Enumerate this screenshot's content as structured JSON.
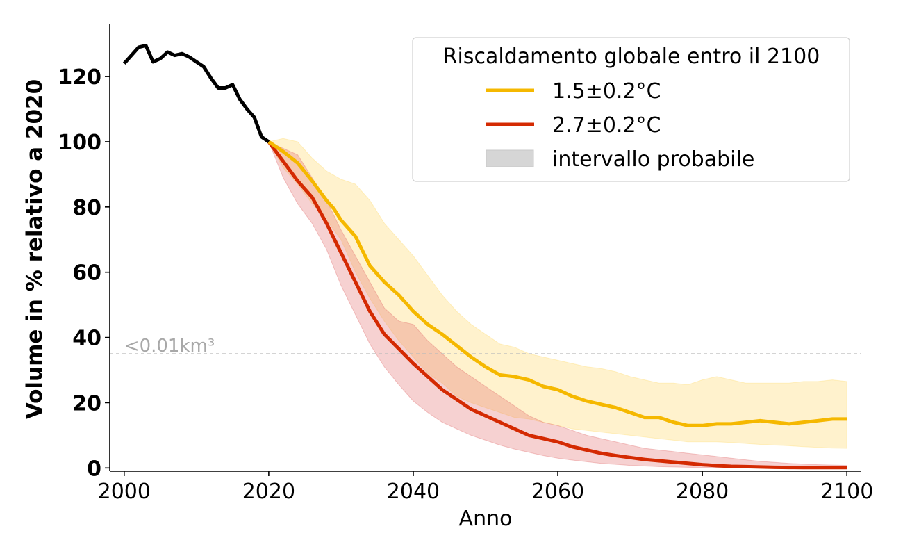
{
  "chart_data": {
    "type": "line",
    "xlabel": "Anno",
    "ylabel": "Volume in % relativo a 2020",
    "xlim": [
      1998,
      2102
    ],
    "ylim": [
      -1,
      136
    ],
    "x_ticks": [
      2000,
      2020,
      2040,
      2060,
      2080,
      2100
    ],
    "y_ticks": [
      0,
      20,
      40,
      60,
      80,
      100,
      120
    ],
    "grid": false,
    "reference_line": {
      "y": 35,
      "label": "<0.01km³",
      "style": "dashed",
      "color": "#bbbbbb"
    },
    "legend": {
      "title": "Riscaldamento globale entro il 2100",
      "placement": "top-right",
      "entries": [
        {
          "label": "1.5±0.2°C",
          "kind": "line",
          "color": "#f5b800"
        },
        {
          "label": "2.7±0.2°C",
          "kind": "line",
          "color": "#d42a02"
        },
        {
          "label": "intervallo probabile",
          "kind": "patch",
          "color": "#d6d6d6"
        }
      ]
    },
    "series": [
      {
        "id": "observed",
        "color": "#000000",
        "x": [
          2000,
          2001,
          2002,
          2003,
          2004,
          2005,
          2006,
          2007,
          2008,
          2009,
          2010,
          2011,
          2012,
          2013,
          2014,
          2015,
          2016,
          2017,
          2018,
          2019,
          2020
        ],
        "values": [
          124,
          126.5,
          129,
          129.5,
          124.5,
          125.5,
          127.5,
          126.5,
          127,
          126,
          124.5,
          123,
          119.5,
          116.5,
          116.5,
          117.5,
          113,
          110,
          107.5,
          101.5,
          100
        ]
      },
      {
        "id": "scenario-1.5",
        "name": "1.5±0.2°C",
        "color": "#f5b800",
        "x": [
          2020,
          2022,
          2024,
          2026,
          2028,
          2029,
          2030,
          2032,
          2034,
          2036,
          2038,
          2040,
          2042,
          2044,
          2046,
          2048,
          2050,
          2052,
          2054,
          2056,
          2058,
          2060,
          2062,
          2064,
          2066,
          2068,
          2070,
          2072,
          2074,
          2076,
          2078,
          2080,
          2082,
          2084,
          2086,
          2088,
          2090,
          2092,
          2094,
          2096,
          2098,
          2100
        ],
        "values": [
          100,
          97,
          93.5,
          88,
          82,
          79.5,
          76,
          71,
          62,
          57,
          53,
          48,
          44,
          41,
          37.5,
          34,
          31,
          28.5,
          28,
          27,
          25,
          24,
          22,
          20.5,
          19.5,
          18.5,
          17,
          15.5,
          15.5,
          14,
          13,
          13,
          13.5,
          13.5,
          14,
          14.5,
          14,
          13.5,
          14,
          14.5,
          15,
          15
        ]
      },
      {
        "id": "scenario-2.7",
        "name": "2.7±0.2°C",
        "color": "#d42a02",
        "x": [
          2020,
          2022,
          2024,
          2026,
          2028,
          2030,
          2032,
          2034,
          2036,
          2038,
          2040,
          2042,
          2044,
          2046,
          2048,
          2050,
          2052,
          2054,
          2056,
          2058,
          2060,
          2062,
          2064,
          2066,
          2068,
          2070,
          2072,
          2074,
          2076,
          2078,
          2080,
          2082,
          2084,
          2086,
          2088,
          2090,
          2092,
          2094,
          2096,
          2098,
          2100
        ],
        "values": [
          100,
          94,
          88,
          83,
          75,
          66,
          57,
          48,
          41,
          36.5,
          32,
          28,
          24,
          21,
          18,
          16,
          14,
          12,
          10,
          9,
          8,
          6.5,
          5.5,
          4.5,
          3.8,
          3.2,
          2.6,
          2.2,
          1.8,
          1.4,
          1,
          0.7,
          0.5,
          0.4,
          0.3,
          0.2,
          0.15,
          0.1,
          0.1,
          0.1,
          0.1
        ]
      }
    ],
    "bands": [
      {
        "id": "range-1.5",
        "series": "1.5±0.2°C",
        "color": "#ffd966",
        "opacity": 0.33,
        "x": [
          2020,
          2022,
          2024,
          2026,
          2028,
          2030,
          2032,
          2034,
          2036,
          2038,
          2040,
          2042,
          2044,
          2046,
          2048,
          2050,
          2052,
          2054,
          2056,
          2058,
          2060,
          2062,
          2064,
          2066,
          2068,
          2070,
          2072,
          2074,
          2076,
          2078,
          2080,
          2082,
          2084,
          2086,
          2088,
          2090,
          2092,
          2094,
          2096,
          2098,
          2100
        ],
        "upper": [
          100,
          101,
          100,
          95,
          91,
          88.5,
          87,
          82,
          75,
          70,
          65,
          59,
          53,
          48,
          44,
          41,
          38,
          37,
          35,
          34,
          33,
          32,
          31,
          30.5,
          29.5,
          28,
          27,
          26,
          26,
          25.5,
          27,
          28,
          27,
          26,
          26,
          26,
          26,
          26.5,
          26.5,
          27,
          26.5
        ],
        "lower": [
          100,
          92,
          87,
          81,
          76,
          70,
          60,
          52,
          45,
          39,
          34,
          29,
          26,
          22,
          20,
          18.5,
          17,
          15.5,
          15,
          14,
          13,
          12,
          11.5,
          11,
          10.5,
          10,
          9.5,
          9,
          8.5,
          8,
          8,
          8,
          7.8,
          7.5,
          7.2,
          7,
          6.8,
          6.5,
          6.3,
          6.1,
          6
        ]
      },
      {
        "id": "range-2.7",
        "series": "2.7±0.2°C",
        "color": "#e06666",
        "opacity": 0.3,
        "x": [
          2020,
          2022,
          2024,
          2026,
          2028,
          2030,
          2032,
          2034,
          2036,
          2038,
          2040,
          2042,
          2044,
          2046,
          2048,
          2050,
          2052,
          2054,
          2056,
          2058,
          2060,
          2062,
          2064,
          2066,
          2068,
          2070,
          2072,
          2074,
          2076,
          2078,
          2080,
          2082,
          2084,
          2086,
          2088,
          2090,
          2092,
          2094,
          2096,
          2098,
          2100
        ],
        "upper": [
          100,
          98,
          96,
          89,
          82,
          73,
          65,
          57,
          49,
          45,
          44,
          39,
          35,
          31,
          28,
          25,
          22,
          19,
          16,
          14,
          13,
          11.5,
          10,
          9,
          8,
          7,
          6,
          5.5,
          5,
          4.5,
          4,
          3.5,
          3,
          2.5,
          2,
          1.7,
          1.4,
          1.2,
          1,
          0.9,
          0.8
        ],
        "lower": [
          100,
          89,
          81,
          75,
          67,
          56,
          47,
          38,
          31,
          25.5,
          20.5,
          17,
          14,
          12,
          10,
          8.5,
          7,
          5.8,
          4.8,
          3.8,
          3,
          2.4,
          1.9,
          1.4,
          1.1,
          0.8,
          0.6,
          0.4,
          0.3,
          0.2,
          0.1,
          0.05,
          0,
          0,
          0,
          0,
          0,
          0,
          0,
          0,
          0
        ]
      }
    ]
  }
}
